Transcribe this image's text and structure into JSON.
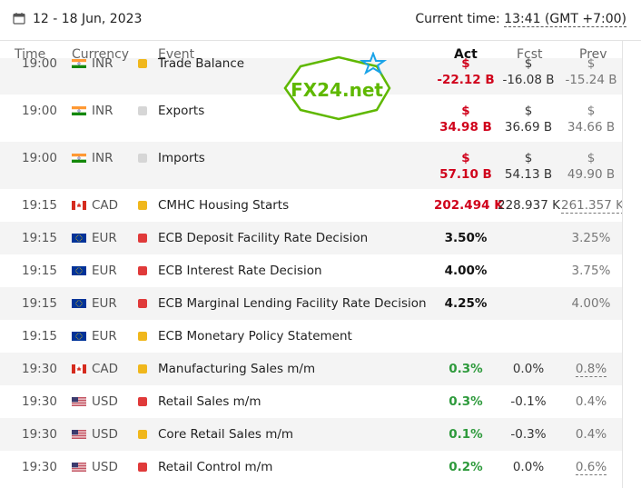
{
  "header": {
    "date_range": "12 - 18 Jun, 2023",
    "current_time_label": "Current time:",
    "current_time_value": "13:41 (GMT +7:00)"
  },
  "columns": {
    "time": "Time",
    "currency": "Currency",
    "event": "Event",
    "act": "Act",
    "fcst": "Fcst",
    "prev": "Prev"
  },
  "rows": [
    {
      "time": "19:00",
      "currency": "INR",
      "flag": "india",
      "importance": "medium",
      "event": "Trade Balance",
      "act_sym": "$",
      "act": "-22.12 B",
      "fcst_sym": "$",
      "fcst": "-16.08 B",
      "prev_sym": "$",
      "prev": "-15.24 B"
    },
    {
      "time": "19:00",
      "currency": "INR",
      "flag": "india",
      "importance": "low",
      "event": "Exports",
      "act_sym": "$",
      "act": "34.98 B",
      "fcst_sym": "$",
      "fcst": "36.69 B",
      "prev_sym": "$",
      "prev": "34.66 B"
    },
    {
      "time": "19:00",
      "currency": "INR",
      "flag": "india",
      "importance": "low",
      "event": "Imports",
      "act_sym": "$",
      "act": "57.10 B",
      "fcst_sym": "$",
      "fcst": "54.13 B",
      "prev_sym": "$",
      "prev": "49.90 B"
    },
    {
      "time": "19:15",
      "currency": "CAD",
      "flag": "canada",
      "importance": "medium",
      "event": "CMHC Housing Starts",
      "act": "202.494 K",
      "fcst": "228.937 K",
      "prev": "261.357 K"
    },
    {
      "time": "19:15",
      "currency": "EUR",
      "flag": "eu",
      "importance": "high",
      "event": "ECB Deposit Facility Rate Decision",
      "act": "3.50%",
      "fcst": "",
      "prev": "3.25%"
    },
    {
      "time": "19:15",
      "currency": "EUR",
      "flag": "eu",
      "importance": "high",
      "event": "ECB Interest Rate Decision",
      "act": "4.00%",
      "fcst": "",
      "prev": "3.75%"
    },
    {
      "time": "19:15",
      "currency": "EUR",
      "flag": "eu",
      "importance": "high",
      "event": "ECB Marginal Lending Facility Rate Decision",
      "act": "4.25%",
      "fcst": "",
      "prev": "4.00%"
    },
    {
      "time": "19:15",
      "currency": "EUR",
      "flag": "eu",
      "importance": "medium",
      "event": "ECB Monetary Policy Statement",
      "act": "",
      "fcst": "",
      "prev": ""
    },
    {
      "time": "19:30",
      "currency": "CAD",
      "flag": "canada",
      "importance": "medium",
      "event": "Manufacturing Sales m/m",
      "act": "0.3%",
      "fcst": "0.0%",
      "prev": "0.8%"
    },
    {
      "time": "19:30",
      "currency": "USD",
      "flag": "usa",
      "importance": "high",
      "event": "Retail Sales m/m",
      "act": "0.3%",
      "fcst": "-0.1%",
      "prev": "0.4%"
    },
    {
      "time": "19:30",
      "currency": "USD",
      "flag": "usa",
      "importance": "medium",
      "event": "Core Retail Sales m/m",
      "act": "0.1%",
      "fcst": "-0.3%",
      "prev": "0.4%"
    },
    {
      "time": "19:30",
      "currency": "USD",
      "flag": "usa",
      "importance": "high",
      "event": "Retail Control m/m",
      "act": "0.2%",
      "fcst": "0.0%",
      "prev": "0.6%"
    }
  ],
  "watermark": {
    "text": "FX24.net"
  },
  "colors": {
    "negative": "#d0021b",
    "positive": "#2e9a3c",
    "importance_high": "#e03a3a",
    "importance_medium": "#f0b71c",
    "importance_low": "#d6d6d6",
    "watermark_green": "#5fb800",
    "watermark_blue": "#1aa3e8"
  }
}
